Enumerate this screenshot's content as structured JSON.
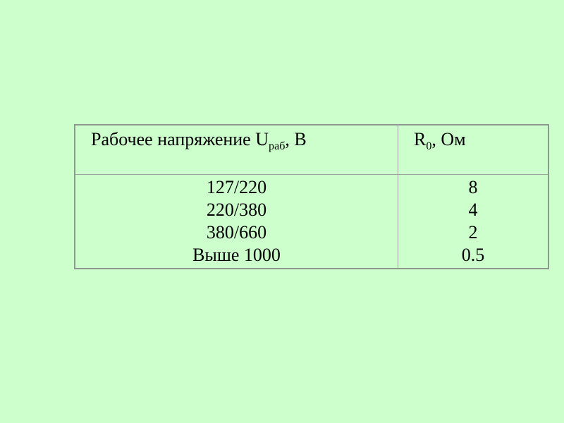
{
  "page": {
    "background_color": "#ccffcc",
    "table_border_color": "#8e998e",
    "table_grid_color": "#9aa49a",
    "text_color": "#000000"
  },
  "table": {
    "header": {
      "voltage": {
        "pre": "Рабочее напряжение U",
        "sub": "раб",
        "post": ", В"
      },
      "resistance": {
        "pre": "R",
        "sub": "0",
        "post": ", Ом"
      }
    },
    "rows": [
      {
        "voltage": "127/220",
        "resistance": "8"
      },
      {
        "voltage": "220/380",
        "resistance": "4"
      },
      {
        "voltage": "380/660",
        "resistance": "2"
      },
      {
        "voltage": "Выше 1000",
        "resistance": "0.5"
      }
    ]
  }
}
